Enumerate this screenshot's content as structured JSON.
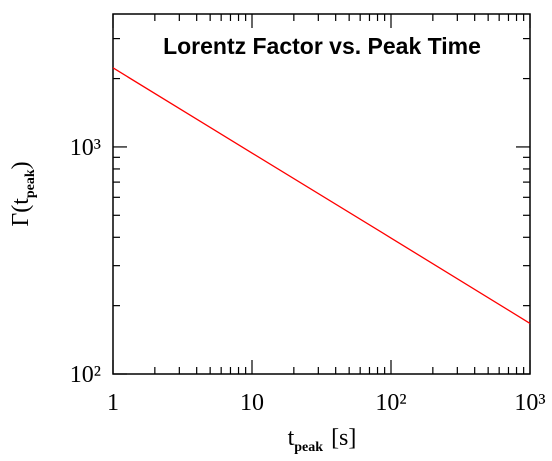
{
  "chart_data": {
    "type": "line",
    "title": "Lorentz Factor vs. Peak Time",
    "xlabel": [
      "t",
      "peak",
      "[s]"
    ],
    "ylabel": [
      "Γ(t",
      "peak",
      ")"
    ],
    "x": [
      1,
      10,
      100,
      1000
    ],
    "values": [
      2230,
      940,
      397,
      167
    ],
    "color": "#ff0000",
    "xlog": true,
    "ylog": true,
    "xlim": [
      1,
      1000
    ],
    "ylim": [
      100,
      3850
    ],
    "xticks": [
      1,
      10,
      {
        "value": 100,
        "label": "10²"
      },
      {
        "value": 1000,
        "label": "10³"
      }
    ],
    "yticks": [
      {
        "value": 100,
        "label": "10²"
      },
      {
        "value": 1000,
        "label": "10³"
      }
    ],
    "xminorticks": [
      2,
      3,
      4,
      5,
      6,
      7,
      8,
      9,
      20,
      30,
      40,
      50,
      60,
      70,
      80,
      90,
      200,
      300,
      400,
      500,
      600,
      700,
      800,
      900
    ],
    "yminorticks": [
      200,
      300,
      400,
      500,
      600,
      700,
      800,
      900,
      2000,
      3000
    ]
  }
}
